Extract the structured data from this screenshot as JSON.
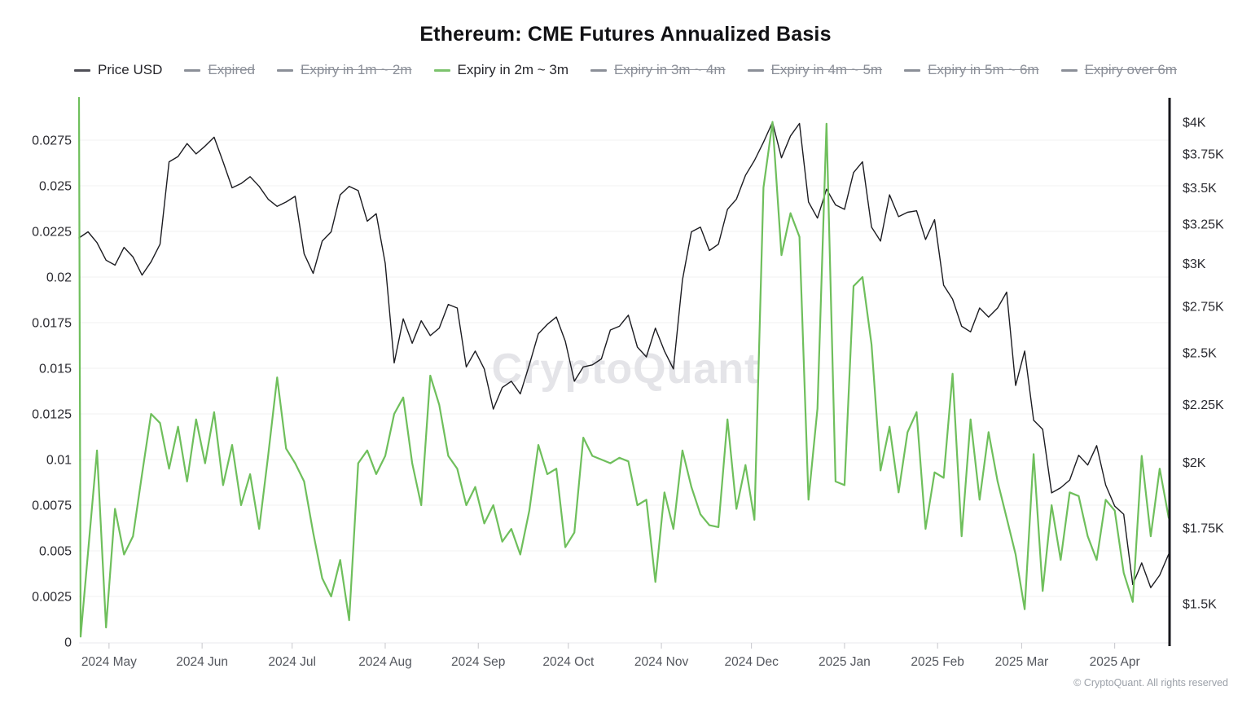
{
  "title": "Ethereum: CME Futures Annualized Basis",
  "watermark": "CryptoQuant",
  "copyright": "© CryptoQuant. All rights reserved",
  "colors": {
    "background": "#ffffff",
    "grid": "#f0f0f2",
    "right_axis_line": "#17171c",
    "bottom_axis_line": "#e9e9ec",
    "tick_mark": "#c6c6cb",
    "price_line": "#1c1c21",
    "basis_line": "#6fbf5c",
    "legend_active_price_dash": "#4f4f57",
    "legend_active_green_dash": "#7cc36d",
    "legend_inactive": "#8b8f98",
    "watermark": "#e4e4e8",
    "y_label": "#2b2b31",
    "x_label": "#54575e"
  },
  "legend": [
    {
      "label": "Price USD",
      "active": true,
      "dash_color": "#4f4f57"
    },
    {
      "label": "Expired",
      "active": false,
      "dash_color": "#8b8f98"
    },
    {
      "label": "Expiry in 1m ~ 2m",
      "active": false,
      "dash_color": "#8b8f98"
    },
    {
      "label": "Expiry in 2m ~ 3m",
      "active": true,
      "dash_color": "#7cc36d"
    },
    {
      "label": "Expiry in 3m ~ 4m",
      "active": false,
      "dash_color": "#8b8f98"
    },
    {
      "label": "Expiry in 4m ~ 5m",
      "active": false,
      "dash_color": "#8b8f98"
    },
    {
      "label": "Expiry in 5m ~ 6m",
      "active": false,
      "dash_color": "#8b8f98"
    },
    {
      "label": "Expiry over 6m",
      "active": false,
      "dash_color": "#8b8f98"
    }
  ],
  "chart_data": {
    "type": "line",
    "x_start": "2024-04-21",
    "x_step_days": 3,
    "n_points": 122,
    "left_axis": {
      "scale": "linear",
      "range": [
        0,
        0.0299
      ],
      "ticks": [
        0,
        0.0025,
        0.005,
        0.0075,
        0.01,
        0.0125,
        0.015,
        0.0175,
        0.02,
        0.0225,
        0.025,
        0.0275
      ],
      "labels": [
        "0",
        "0.0025",
        "0.005",
        "0.0075",
        "0.01",
        "0.0125",
        "0.015",
        "0.0175",
        "0.02",
        "0.0225",
        "0.025",
        "0.0275"
      ]
    },
    "right_axis": {
      "scale": "log",
      "range": [
        1385,
        4196
      ],
      "ticks": [
        4000,
        3750,
        3500,
        3250,
        3000,
        2750,
        2500,
        2250,
        2000,
        1750,
        1500
      ],
      "labels": [
        "$4K",
        "$3.75K",
        "$3.5K",
        "$3.25K",
        "$3K",
        "$2.75K",
        "$2.5K",
        "$2.25K",
        "$2K",
        "$1.75K",
        "$1.5K"
      ]
    },
    "x_axis": {
      "ticks": [
        {
          "label": "2024 May",
          "day": 10
        },
        {
          "label": "2024 Jun",
          "day": 41
        },
        {
          "label": "2024 Jul",
          "day": 71
        },
        {
          "label": "2024 Aug",
          "day": 102
        },
        {
          "label": "2024 Sep",
          "day": 133
        },
        {
          "label": "2024 Oct",
          "day": 163
        },
        {
          "label": "2024 Nov",
          "day": 194
        },
        {
          "label": "2024 Dec",
          "day": 224
        },
        {
          "label": "2025 Jan",
          "day": 255
        },
        {
          "label": "2025 Feb",
          "day": 286
        },
        {
          "label": "2025 Mar",
          "day": 314
        },
        {
          "label": "2025 Apr",
          "day": 345
        }
      ]
    },
    "series": [
      {
        "name": "Price USD",
        "axis": "right",
        "color": "#1c1c21",
        "width": 1.4,
        "values": [
          3160,
          3200,
          3130,
          3020,
          2990,
          3100,
          3040,
          2930,
          3010,
          3120,
          3690,
          3730,
          3830,
          3750,
          3810,
          3880,
          3690,
          3500,
          3530,
          3580,
          3510,
          3420,
          3370,
          3400,
          3440,
          3060,
          2940,
          3140,
          3200,
          3450,
          3510,
          3480,
          3270,
          3320,
          3000,
          2450,
          2680,
          2550,
          2670,
          2590,
          2630,
          2760,
          2740,
          2430,
          2510,
          2420,
          2230,
          2330,
          2360,
          2300,
          2440,
          2600,
          2650,
          2690,
          2560,
          2360,
          2430,
          2440,
          2470,
          2620,
          2640,
          2700,
          2530,
          2480,
          2630,
          2510,
          2420,
          2900,
          3200,
          3230,
          3080,
          3120,
          3350,
          3420,
          3590,
          3700,
          3840,
          4000,
          3720,
          3890,
          3990,
          3400,
          3290,
          3490,
          3380,
          3350,
          3610,
          3690,
          3230,
          3140,
          3450,
          3300,
          3330,
          3340,
          3150,
          3280,
          2870,
          2790,
          2640,
          2610,
          2740,
          2690,
          2740,
          2830,
          2340,
          2510,
          2180,
          2140,
          1880,
          1900,
          1930,
          2030,
          1990,
          2070,
          1910,
          1830,
          1800,
          1560,
          1630,
          1550,
          1590,
          1660
        ]
      },
      {
        "name": "Expiry in 2m ~ 3m",
        "axis": "left",
        "color": "#6fbf5c",
        "width": 2.2,
        "vertical_start": true,
        "values": [
          0.0299,
          0.0003,
          0.0105,
          0.0008,
          0.0073,
          0.0048,
          0.0058,
          0.0092,
          0.0125,
          0.012,
          0.0095,
          0.0118,
          0.0088,
          0.0122,
          0.0098,
          0.0126,
          0.0086,
          0.0108,
          0.0075,
          0.0092,
          0.0062,
          0.0102,
          0.0145,
          0.0106,
          0.0098,
          0.0088,
          0.006,
          0.0035,
          0.0025,
          0.0045,
          0.0012,
          0.0098,
          0.0105,
          0.0092,
          0.0102,
          0.0125,
          0.0134,
          0.0098,
          0.0075,
          0.0146,
          0.013,
          0.0102,
          0.0095,
          0.0075,
          0.0085,
          0.0065,
          0.0075,
          0.0055,
          0.0062,
          0.0048,
          0.0072,
          0.0108,
          0.0092,
          0.0095,
          0.0052,
          0.006,
          0.0112,
          0.0102,
          0.01,
          0.0098,
          0.0101,
          0.0099,
          0.0075,
          0.0078,
          0.0033,
          0.0082,
          0.0062,
          0.0105,
          0.0085,
          0.007,
          0.0064,
          0.0063,
          0.0122,
          0.0073,
          0.0097,
          0.0067,
          0.0249,
          0.0285,
          0.0212,
          0.0235,
          0.0222,
          0.0078,
          0.0128,
          0.0284,
          0.0088,
          0.0086,
          0.0195,
          0.02,
          0.0163,
          0.0094,
          0.0118,
          0.0082,
          0.0115,
          0.0126,
          0.0062,
          0.0093,
          0.009,
          0.0147,
          0.0058,
          0.0122,
          0.0078,
          0.0115,
          0.0088,
          0.0068,
          0.0048,
          0.0018,
          0.0103,
          0.0028,
          0.0075,
          0.0045,
          0.0082,
          0.008,
          0.0058,
          0.0045,
          0.0078,
          0.0072,
          0.0038,
          0.0022,
          0.0102,
          0.0058,
          0.0095,
          0.0068
        ]
      }
    ]
  }
}
